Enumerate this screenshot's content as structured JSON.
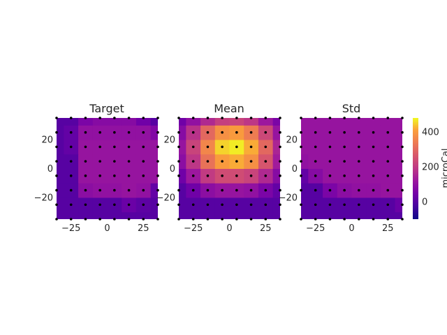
{
  "chart_data": [
    {
      "type": "heatmap",
      "title": "Target",
      "xlabel": "",
      "ylabel": "",
      "xlim": [
        -35,
        35
      ],
      "ylim": [
        -35,
        35
      ],
      "xticks": [
        -25,
        0,
        25
      ],
      "yticks": [
        -20,
        0,
        20
      ],
      "x": [
        -35,
        -25,
        -15,
        -5,
        5,
        15,
        25,
        35
      ],
      "y": [
        -35,
        -25,
        -15,
        -5,
        5,
        15,
        25,
        35
      ],
      "z": [
        [
          0,
          0,
          0,
          0,
          0,
          0,
          0,
          0
        ],
        [
          0,
          0,
          0,
          0,
          0,
          30,
          10,
          0
        ],
        [
          0,
          0,
          90,
          100,
          100,
          110,
          100,
          20
        ],
        [
          0,
          0,
          110,
          110,
          110,
          110,
          110,
          110
        ],
        [
          0,
          0,
          110,
          110,
          110,
          110,
          110,
          110
        ],
        [
          0,
          20,
          110,
          110,
          110,
          110,
          110,
          110
        ],
        [
          0,
          20,
          100,
          100,
          100,
          100,
          100,
          70
        ],
        [
          0,
          0,
          60,
          80,
          80,
          80,
          40,
          0
        ]
      ],
      "grid": false
    },
    {
      "type": "heatmap",
      "title": "Mean",
      "xlabel": "",
      "ylabel": "",
      "xlim": [
        -35,
        35
      ],
      "ylim": [
        -35,
        35
      ],
      "xticks": [
        -25,
        0,
        25
      ],
      "yticks": [
        -20,
        0,
        20
      ],
      "x": [
        -35,
        -25,
        -15,
        -5,
        5,
        15,
        25,
        35
      ],
      "y": [
        -35,
        -25,
        -15,
        -5,
        5,
        15,
        25,
        35
      ],
      "z": [
        [
          0,
          0,
          0,
          0,
          0,
          0,
          0,
          0
        ],
        [
          0,
          0,
          0,
          0,
          0,
          0,
          0,
          0
        ],
        [
          0,
          40,
          90,
          110,
          110,
          100,
          60,
          20
        ],
        [
          40,
          120,
          200,
          240,
          240,
          220,
          160,
          80
        ],
        [
          90,
          190,
          320,
          400,
          420,
          380,
          260,
          130
        ],
        [
          110,
          220,
          360,
          450,
          470,
          420,
          300,
          150
        ],
        [
          80,
          180,
          300,
          380,
          400,
          340,
          230,
          110
        ],
        [
          40,
          100,
          160,
          210,
          220,
          190,
          120,
          60
        ]
      ],
      "grid": false
    },
    {
      "type": "heatmap",
      "title": "Std",
      "xlabel": "",
      "ylabel": "",
      "xlim": [
        -35,
        35
      ],
      "ylim": [
        -35,
        35
      ],
      "xticks": [
        -25,
        0,
        25
      ],
      "yticks": [
        -20,
        0,
        20
      ],
      "x": [
        -35,
        -25,
        -15,
        -5,
        5,
        15,
        25,
        35
      ],
      "y": [
        -35,
        -25,
        -15,
        -5,
        5,
        15,
        25,
        35
      ],
      "z": [
        [
          0,
          0,
          0,
          0,
          0,
          0,
          0,
          0
        ],
        [
          0,
          0,
          0,
          0,
          0,
          0,
          0,
          30
        ],
        [
          0,
          0,
          60,
          90,
          100,
          100,
          110,
          110
        ],
        [
          20,
          80,
          110,
          110,
          110,
          110,
          110,
          110
        ],
        [
          100,
          110,
          110,
          110,
          110,
          110,
          110,
          110
        ],
        [
          110,
          110,
          110,
          110,
          110,
          110,
          110,
          110
        ],
        [
          110,
          110,
          110,
          110,
          110,
          110,
          110,
          110
        ],
        [
          110,
          110,
          110,
          110,
          110,
          110,
          110,
          110
        ]
      ],
      "grid": false
    }
  ],
  "colorbar": {
    "colormap": "plasma",
    "range": [
      -100,
      480
    ],
    "ticks": [
      0,
      200,
      400
    ],
    "label": "microCal"
  },
  "colors": {
    "sample_points": "#000000",
    "axis_text": "#262626"
  }
}
